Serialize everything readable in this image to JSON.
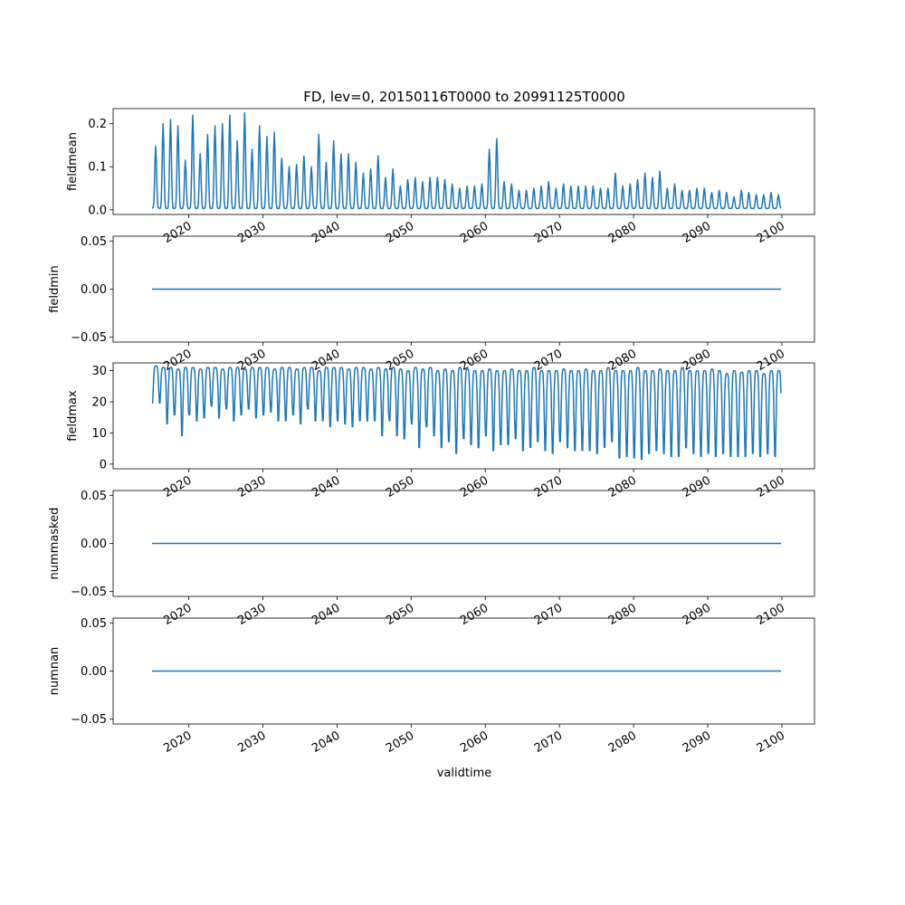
{
  "figure": {
    "title": "FD, lev=0, 20150116T0000 to 20991125T0000",
    "xlabel": "validtime"
  },
  "colors": {
    "line": "#1f77b4",
    "axes": "#000000",
    "background": "#ffffff"
  },
  "chart_data": [
    {
      "type": "line",
      "ylabel": "fieldmean",
      "xlim": [
        2009.8,
        2104.4
      ],
      "ylim": [
        -0.011,
        0.235
      ],
      "yticks": [
        0.0,
        0.1,
        0.2
      ],
      "ytick_labels": [
        "0.0",
        "0.1",
        "0.2"
      ],
      "xticks": [
        2020,
        2030,
        2040,
        2050,
        2060,
        2070,
        2080,
        2090,
        2100
      ],
      "xtick_labels": [
        "2020",
        "2030",
        "2040",
        "2050",
        "2060",
        "2070",
        "2080",
        "2090",
        "2100"
      ],
      "x_range": [
        2015.04,
        2099.9
      ],
      "series_kind": "monthly_seasonal",
      "annual_peaks": [
        0.148,
        0.2,
        0.21,
        0.195,
        0.115,
        0.22,
        0.13,
        0.175,
        0.195,
        0.2,
        0.22,
        0.16,
        0.225,
        0.14,
        0.195,
        0.17,
        0.18,
        0.12,
        0.1,
        0.105,
        0.125,
        0.1,
        0.175,
        0.11,
        0.16,
        0.13,
        0.13,
        0.11,
        0.085,
        0.095,
        0.125,
        0.075,
        0.095,
        0.055,
        0.07,
        0.075,
        0.065,
        0.075,
        0.075,
        0.07,
        0.06,
        0.05,
        0.055,
        0.055,
        0.06,
        0.14,
        0.165,
        0.065,
        0.06,
        0.045,
        0.045,
        0.05,
        0.055,
        0.065,
        0.05,
        0.06,
        0.055,
        0.055,
        0.055,
        0.055,
        0.05,
        0.05,
        0.085,
        0.055,
        0.06,
        0.07,
        0.085,
        0.075,
        0.09,
        0.05,
        0.06,
        0.045,
        0.045,
        0.05,
        0.05,
        0.04,
        0.045,
        0.04,
        0.03,
        0.045,
        0.04,
        0.035,
        0.035,
        0.04,
        0.035
      ],
      "annual_troughs": [
        0.004,
        0.003,
        0.003,
        0.003,
        0.003,
        0.003,
        0.003,
        0.003,
        0.003,
        0.003,
        0.003,
        0.003,
        0.003,
        0.003,
        0.003,
        0.003,
        0.003,
        0.003,
        0.003,
        0.003,
        0.003,
        0.003,
        0.003,
        0.003,
        0.003,
        0.003,
        0.003,
        0.003,
        0.003,
        0.003,
        0.003,
        0.003,
        0.003,
        0.003,
        0.003,
        0.003,
        0.003,
        0.003,
        0.003,
        0.003,
        0.003,
        0.003,
        0.003,
        0.003,
        0.003,
        0.003,
        0.003,
        0.003,
        0.003,
        0.003,
        0.003,
        0.003,
        0.003,
        0.003,
        0.003,
        0.003,
        0.003,
        0.003,
        0.003,
        0.003,
        0.003,
        0.003,
        0.003,
        0.003,
        0.003,
        0.003,
        0.003,
        0.003,
        0.003,
        0.003,
        0.003,
        0.003,
        0.003,
        0.003,
        0.003,
        0.003,
        0.003,
        0.003,
        0.003,
        0.003,
        0.003,
        0.003,
        0.003,
        0.003,
        0.003
      ]
    },
    {
      "type": "line",
      "ylabel": "fieldmin",
      "xlim": [
        2009.8,
        2104.4
      ],
      "ylim": [
        -0.055,
        0.055
      ],
      "yticks": [
        -0.05,
        0.0,
        0.05
      ],
      "ytick_labels": [
        "−0.05",
        "0.00",
        "0.05"
      ],
      "xticks": [
        2020,
        2030,
        2040,
        2050,
        2060,
        2070,
        2080,
        2090,
        2100
      ],
      "xtick_labels": [
        "2020",
        "2030",
        "2040",
        "2050",
        "2060",
        "2070",
        "2080",
        "2090",
        "2100"
      ],
      "x_range": [
        2015.04,
        2099.9
      ],
      "series_kind": "constant",
      "constant": 0.0
    },
    {
      "type": "line",
      "ylabel": "fieldmax",
      "xlim": [
        2009.8,
        2104.4
      ],
      "ylim": [
        -1.5,
        32.5
      ],
      "yticks": [
        0,
        10,
        20,
        30
      ],
      "ytick_labels": [
        "0",
        "10",
        "20",
        "30"
      ],
      "xticks": [
        2020,
        2030,
        2040,
        2050,
        2060,
        2070,
        2080,
        2090,
        2100
      ],
      "xtick_labels": [
        "2020",
        "2030",
        "2040",
        "2050",
        "2060",
        "2070",
        "2080",
        "2090",
        "2100"
      ],
      "x_range": [
        2015.04,
        2099.9
      ],
      "series_kind": "monthly_seasonal_inverted",
      "annual_peaks": [
        31.5,
        31,
        31,
        30.5,
        31,
        31,
        30.5,
        31,
        31,
        30.5,
        31,
        31,
        30.5,
        31,
        31,
        31,
        30.5,
        31,
        31,
        30.5,
        31,
        31,
        30,
        31,
        31,
        31,
        30.5,
        31,
        31,
        30.5,
        31,
        30.5,
        31,
        30.5,
        30,
        31,
        30.5,
        31,
        30,
        30.5,
        30,
        31,
        30.5,
        30,
        30,
        30.5,
        30,
        30,
        30.5,
        30,
        30,
        31,
        30,
        30,
        30,
        30.5,
        30,
        30,
        30.5,
        30,
        30,
        31,
        30,
        30,
        30,
        31,
        30,
        30,
        30.5,
        30,
        30,
        31,
        30,
        30,
        30,
        30.5,
        30,
        29,
        30,
        29.5,
        30,
        30,
        29,
        30,
        30
      ],
      "annual_troughs": [
        19,
        19,
        12,
        15,
        8,
        15,
        13,
        14,
        18,
        14,
        17,
        13,
        15,
        17,
        14,
        15,
        16,
        13,
        13,
        15,
        12,
        17,
        13,
        13,
        11,
        13,
        12,
        11,
        13,
        13,
        13,
        8,
        13,
        8,
        7,
        12,
        4,
        11,
        8,
        4,
        6,
        2,
        7,
        5,
        4,
        8,
        3,
        5,
        5,
        7,
        3,
        4,
        6,
        3,
        2,
        6,
        4,
        3,
        3,
        3,
        2,
        4,
        6,
        0.5,
        1,
        0.5,
        0,
        2,
        3,
        2,
        1,
        1,
        4,
        2,
        1,
        2,
        1,
        2,
        1,
        1,
        1,
        2,
        1,
        2,
        1
      ]
    },
    {
      "type": "line",
      "ylabel": "nummasked",
      "xlim": [
        2009.8,
        2104.4
      ],
      "ylim": [
        -0.055,
        0.055
      ],
      "yticks": [
        -0.05,
        0.0,
        0.05
      ],
      "ytick_labels": [
        "−0.05",
        "0.00",
        "0.05"
      ],
      "xticks": [
        2020,
        2030,
        2040,
        2050,
        2060,
        2070,
        2080,
        2090,
        2100
      ],
      "xtick_labels": [
        "2020",
        "2030",
        "2040",
        "2050",
        "2060",
        "2070",
        "2080",
        "2090",
        "2100"
      ],
      "x_range": [
        2015.04,
        2099.9
      ],
      "series_kind": "constant",
      "constant": 0.0
    },
    {
      "type": "line",
      "ylabel": "numnan",
      "xlim": [
        2009.8,
        2104.4
      ],
      "ylim": [
        -0.055,
        0.055
      ],
      "yticks": [
        -0.05,
        0.0,
        0.05
      ],
      "ytick_labels": [
        "−0.05",
        "0.00",
        "0.05"
      ],
      "xticks": [
        2020,
        2030,
        2040,
        2050,
        2060,
        2070,
        2080,
        2090,
        2100
      ],
      "xtick_labels": [
        "2020",
        "2030",
        "2040",
        "2050",
        "2060",
        "2070",
        "2080",
        "2090",
        "2100"
      ],
      "x_range": [
        2015.04,
        2099.9
      ],
      "series_kind": "constant",
      "constant": 0.0
    }
  ]
}
